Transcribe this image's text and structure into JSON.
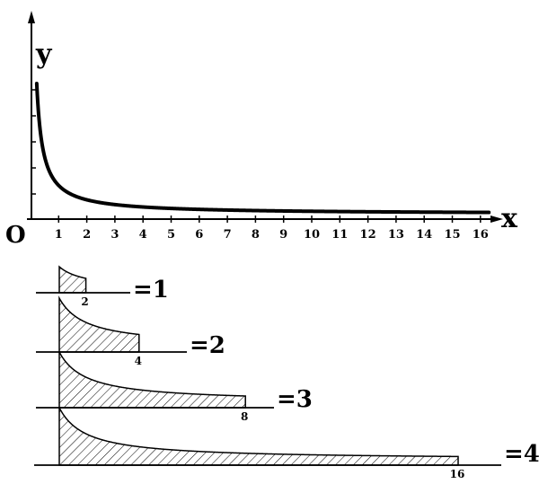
{
  "graph": {
    "y_label": "y",
    "x_label": "x",
    "origin_label": "O",
    "x_ticks": [
      "1",
      "2",
      "3",
      "4",
      "5",
      "6",
      "7",
      "8",
      "9",
      "10",
      "11",
      "12",
      "13",
      "14",
      "15",
      "16"
    ]
  },
  "strips": [
    {
      "end_label": "2",
      "result": "=1"
    },
    {
      "end_label": "4",
      "result": "=2"
    },
    {
      "end_label": "8",
      "result": "=3"
    },
    {
      "end_label": "16",
      "result": "=4"
    }
  ]
}
